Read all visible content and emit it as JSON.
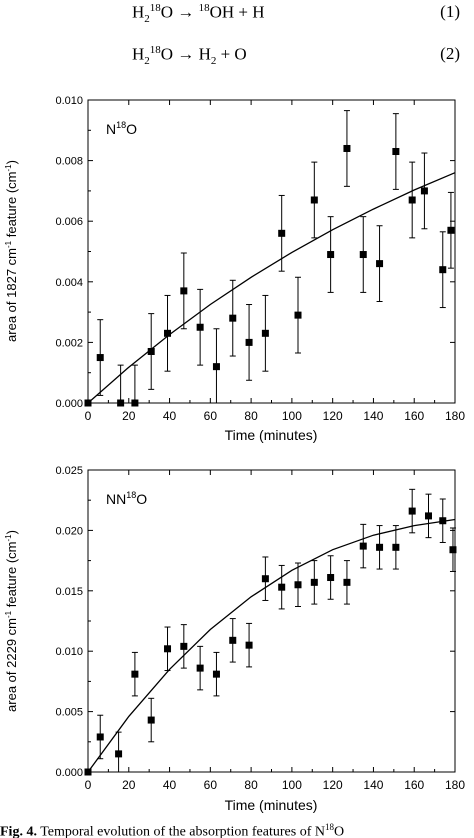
{
  "equations": [
    {
      "lhs_base": "H",
      "lhs_sub": "2",
      "lhs_sup": "18",
      "lhs_tail": "O",
      "arrow": "→",
      "rhs_sup": "18",
      "rhs_main": "OH + H",
      "number": "(1)"
    },
    {
      "lhs_base": "H",
      "lhs_sub": "2",
      "lhs_sup": "18",
      "lhs_tail": "O",
      "arrow": "→",
      "rhs_main": "H",
      "rhs_sub": "2",
      "rhs_tail": " + O",
      "number": "(2)"
    }
  ],
  "caption": {
    "label": "Fig. 4.",
    "text": "Temporal evolution of the absorption features of N",
    "sup": "18",
    "tail": "O"
  },
  "chart_data": [
    {
      "type": "scatter",
      "title": "",
      "species_label": {
        "base": "N",
        "sup": "18",
        "tail": "O"
      },
      "xlabel": "Time (minutes)",
      "ylabel": {
        "pre": "area of 1827 cm",
        "sup": "-1",
        "post": " feature (cm",
        "sup2": "-1",
        "end": ")"
      },
      "xlim": [
        0,
        180
      ],
      "ylim": [
        0,
        0.01
      ],
      "xticks": [
        "0",
        "20",
        "40",
        "60",
        "80",
        "100",
        "120",
        "140",
        "160",
        "180"
      ],
      "yticks": [
        "0.000",
        "0.002",
        "0.004",
        "0.006",
        "0.008",
        "0.010"
      ],
      "points": [
        {
          "x": 0,
          "y": 0.0,
          "err": 0.0
        },
        {
          "x": 6,
          "y": 0.0015,
          "err": 0.00125
        },
        {
          "x": 16,
          "y": 0.0,
          "err": 0.00125
        },
        {
          "x": 23,
          "y": 0.0,
          "err": 0.00125
        },
        {
          "x": 31,
          "y": 0.0017,
          "err": 0.00125
        },
        {
          "x": 39,
          "y": 0.0023,
          "err": 0.00125
        },
        {
          "x": 47,
          "y": 0.0037,
          "err": 0.00125
        },
        {
          "x": 55,
          "y": 0.0025,
          "err": 0.00125
        },
        {
          "x": 63,
          "y": 0.0012,
          "err": 0.00125
        },
        {
          "x": 71,
          "y": 0.0028,
          "err": 0.00125
        },
        {
          "x": 79,
          "y": 0.002,
          "err": 0.00125
        },
        {
          "x": 87,
          "y": 0.0023,
          "err": 0.00125
        },
        {
          "x": 95,
          "y": 0.0056,
          "err": 0.00125
        },
        {
          "x": 103,
          "y": 0.0029,
          "err": 0.00125
        },
        {
          "x": 111,
          "y": 0.0067,
          "err": 0.00125
        },
        {
          "x": 119,
          "y": 0.0049,
          "err": 0.00125
        },
        {
          "x": 127,
          "y": 0.0084,
          "err": 0.00125
        },
        {
          "x": 135,
          "y": 0.0049,
          "err": 0.00125
        },
        {
          "x": 143,
          "y": 0.0046,
          "err": 0.00125
        },
        {
          "x": 151,
          "y": 0.0083,
          "err": 0.00125
        },
        {
          "x": 159,
          "y": 0.0067,
          "err": 0.00125
        },
        {
          "x": 165,
          "y": 0.007,
          "err": 0.00125
        },
        {
          "x": 174,
          "y": 0.0044,
          "err": 0.00125
        },
        {
          "x": 178,
          "y": 0.0057,
          "err": 0.00125
        }
      ],
      "fit": {
        "x": [
          0,
          20,
          40,
          60,
          80,
          100,
          120,
          140,
          160,
          180
        ],
        "y": [
          0.0,
          0.00118,
          0.00226,
          0.00325,
          0.00415,
          0.00497,
          0.00572,
          0.0064,
          0.00703,
          0.0076
        ]
      }
    },
    {
      "type": "scatter",
      "title": "",
      "species_label": {
        "base": "NN",
        "sup": "18",
        "tail": "O"
      },
      "xlabel": "Time (minutes)",
      "ylabel": {
        "pre": "area of 2229 cm",
        "sup": "-1",
        "post": " feature (cm",
        "sup2": "-1",
        "end": ")"
      },
      "xlim": [
        0,
        180
      ],
      "ylim": [
        0,
        0.025
      ],
      "xticks": [
        "0",
        "20",
        "40",
        "60",
        "80",
        "100",
        "120",
        "140",
        "160",
        "180"
      ],
      "yticks": [
        "0.000",
        "0.005",
        "0.010",
        "0.015",
        "0.020",
        "0.025"
      ],
      "points": [
        {
          "x": 0,
          "y": 0.0,
          "err": 0.0
        },
        {
          "x": 6,
          "y": 0.0029,
          "err": 0.0018
        },
        {
          "x": 15,
          "y": 0.0015,
          "err": 0.0018
        },
        {
          "x": 23,
          "y": 0.0081,
          "err": 0.0018
        },
        {
          "x": 31,
          "y": 0.0043,
          "err": 0.0018
        },
        {
          "x": 39,
          "y": 0.0102,
          "err": 0.0018
        },
        {
          "x": 47,
          "y": 0.0104,
          "err": 0.0018
        },
        {
          "x": 55,
          "y": 0.0086,
          "err": 0.0018
        },
        {
          "x": 63,
          "y": 0.0081,
          "err": 0.0018
        },
        {
          "x": 71,
          "y": 0.0109,
          "err": 0.0018
        },
        {
          "x": 79,
          "y": 0.0105,
          "err": 0.0018
        },
        {
          "x": 87,
          "y": 0.016,
          "err": 0.0018
        },
        {
          "x": 95,
          "y": 0.0153,
          "err": 0.0018
        },
        {
          "x": 103,
          "y": 0.0155,
          "err": 0.0018
        },
        {
          "x": 111,
          "y": 0.0157,
          "err": 0.0018
        },
        {
          "x": 119,
          "y": 0.0161,
          "err": 0.0018
        },
        {
          "x": 127,
          "y": 0.0157,
          "err": 0.0018
        },
        {
          "x": 135,
          "y": 0.0187,
          "err": 0.0018
        },
        {
          "x": 143,
          "y": 0.0186,
          "err": 0.0018
        },
        {
          "x": 151,
          "y": 0.0186,
          "err": 0.0018
        },
        {
          "x": 159,
          "y": 0.0216,
          "err": 0.0018
        },
        {
          "x": 167,
          "y": 0.0212,
          "err": 0.0018
        },
        {
          "x": 174,
          "y": 0.0208,
          "err": 0.0018
        },
        {
          "x": 179,
          "y": 0.0184,
          "err": 0.0018
        }
      ],
      "fit": {
        "x": [
          0,
          20,
          40,
          60,
          80,
          100,
          120,
          140,
          160,
          180
        ],
        "y": [
          0.0,
          0.0046,
          0.0085,
          0.0118,
          0.0145,
          0.0167,
          0.0184,
          0.0196,
          0.0204,
          0.0209
        ]
      }
    }
  ]
}
